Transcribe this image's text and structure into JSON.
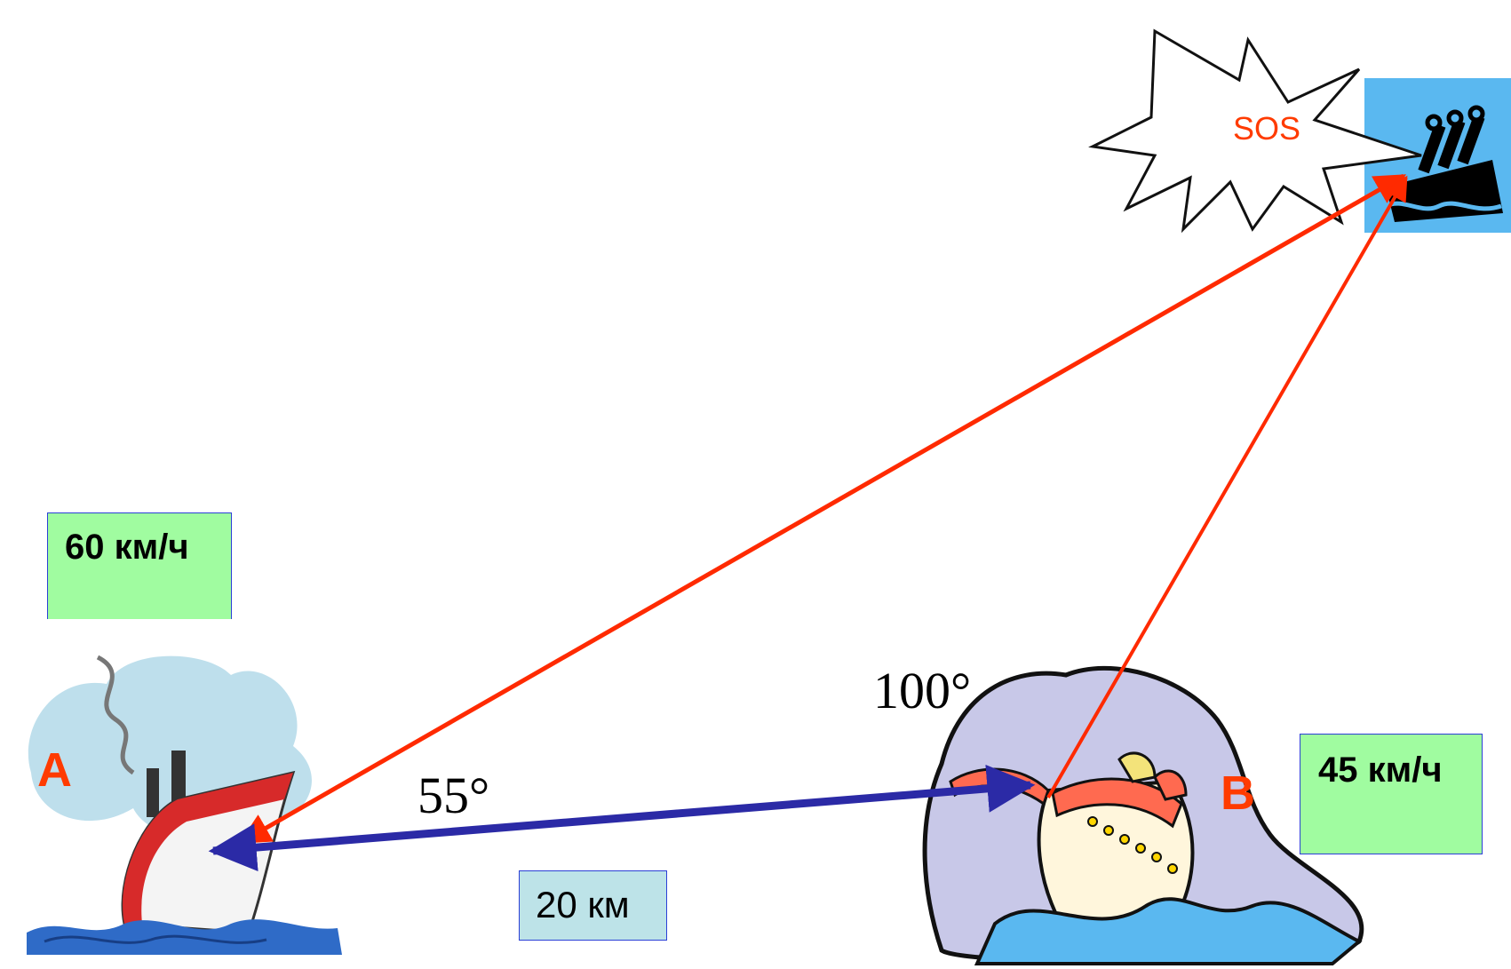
{
  "points": {
    "a": "A",
    "b": "B"
  },
  "speeds": {
    "a": "60 км/ч",
    "b": "45 км/ч"
  },
  "distance": "20 км",
  "angles": {
    "a": "55°",
    "b": "100°"
  },
  "signal": "SOS",
  "colors": {
    "route": "#ff2a00",
    "baseline": "#2b2aa6",
    "speed_box": "#a0fca0",
    "distance_box": "#bde3e8",
    "ship_box": "#5ab8f0"
  },
  "icons": {
    "ship_a": "steamship-icon",
    "ship_b": "cruise-ship-icon",
    "distress_ship": "sinking-ship-icon",
    "burst": "explosion-burst-icon"
  }
}
